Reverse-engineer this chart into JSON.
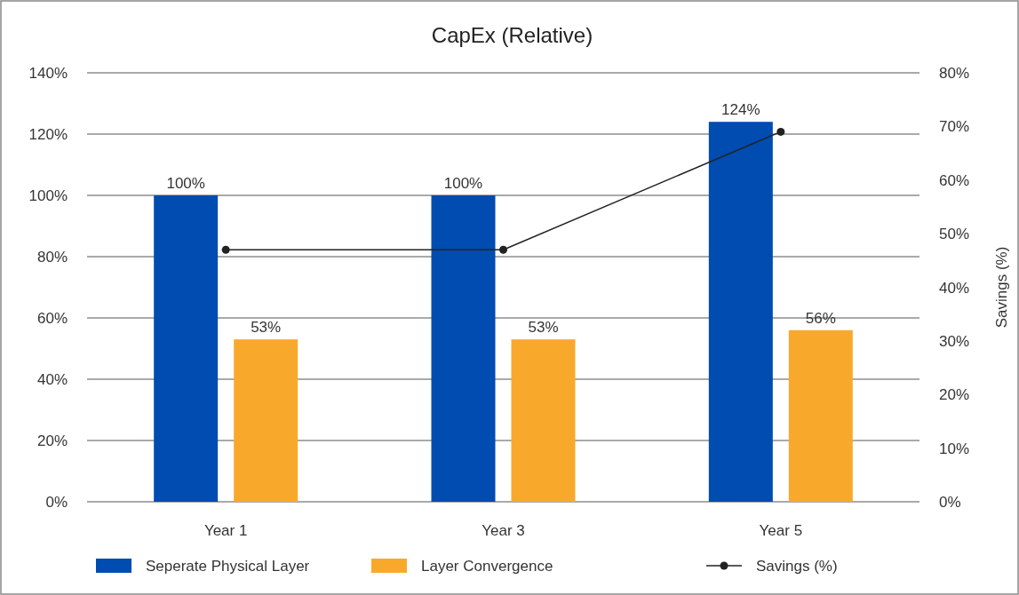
{
  "chart_data": {
    "type": "bar",
    "title": "CapEx (Relative)",
    "y2label": "Savings (%)",
    "categories": [
      "Year 1",
      "Year 3",
      "Year 5"
    ],
    "series": [
      {
        "name": "Seperate Physical Layer",
        "color": "#004cb0",
        "values": [
          100,
          100,
          124
        ],
        "value_labels": [
          "100%",
          "100%",
          "124%"
        ]
      },
      {
        "name": "Layer Convergence",
        "color": "#f8a92c",
        "values": [
          53,
          53,
          56
        ],
        "value_labels": [
          "53%",
          "53%",
          "56%"
        ]
      },
      {
        "name": "Savings (%)",
        "type": "line",
        "axis": "y2",
        "color": "#222222",
        "values": [
          47,
          47,
          69
        ],
        "marker": "circle",
        "line_style": "solid"
      }
    ],
    "ylim": [
      0,
      140
    ],
    "yticks": [
      {
        "value": 0,
        "label": "0%"
      },
      {
        "value": 20,
        "label": "20%"
      },
      {
        "value": 40,
        "label": "40%"
      },
      {
        "value": 60,
        "label": "60%"
      },
      {
        "value": 80,
        "label": "80%"
      },
      {
        "value": 100,
        "label": "100%"
      },
      {
        "value": 120,
        "label": "120%"
      },
      {
        "value": 140,
        "label": "140%"
      }
    ],
    "y2lim": [
      0,
      80
    ],
    "y2ticks": [
      {
        "value": 0,
        "label": "0%"
      },
      {
        "value": 10,
        "label": "10%"
      },
      {
        "value": 20,
        "label": "20%"
      },
      {
        "value": 30,
        "label": "30%"
      },
      {
        "value": 40,
        "label": "40%"
      },
      {
        "value": 50,
        "label": "50%"
      },
      {
        "value": 60,
        "label": "60%"
      },
      {
        "value": 70,
        "label": "70%"
      },
      {
        "value": 80,
        "label": "80%"
      }
    ],
    "grid": "y",
    "legend": "bottom"
  }
}
